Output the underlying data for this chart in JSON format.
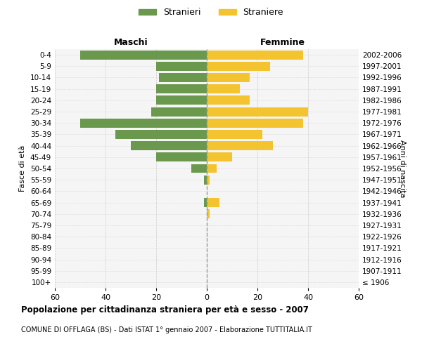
{
  "age_groups": [
    "100+",
    "95-99",
    "90-94",
    "85-89",
    "80-84",
    "75-79",
    "70-74",
    "65-69",
    "60-64",
    "55-59",
    "50-54",
    "45-49",
    "40-44",
    "35-39",
    "30-34",
    "25-29",
    "20-24",
    "15-19",
    "10-14",
    "5-9",
    "0-4"
  ],
  "birth_years": [
    "≤ 1906",
    "1907-1911",
    "1912-1916",
    "1917-1921",
    "1922-1926",
    "1927-1931",
    "1932-1936",
    "1937-1941",
    "1942-1946",
    "1947-1951",
    "1952-1956",
    "1957-1961",
    "1962-1966",
    "1967-1971",
    "1972-1976",
    "1977-1981",
    "1982-1986",
    "1987-1991",
    "1992-1996",
    "1997-2001",
    "2002-2006"
  ],
  "males": [
    0,
    0,
    0,
    0,
    0,
    0,
    0,
    1,
    0,
    1,
    6,
    20,
    30,
    36,
    50,
    22,
    20,
    20,
    19,
    20,
    50
  ],
  "females": [
    0,
    0,
    0,
    0,
    0,
    0,
    1,
    5,
    0,
    1,
    4,
    10,
    26,
    22,
    38,
    40,
    17,
    13,
    17,
    25,
    38
  ],
  "male_color": "#6a994e",
  "female_color": "#f4c430",
  "male_label": "Stranieri",
  "female_label": "Straniere",
  "xlim": 60,
  "title": "Popolazione per cittadinanza straniera per età e sesso - 2007",
  "subtitle": "COMUNE DI OFFLAGA (BS) - Dati ISTAT 1° gennaio 2007 - Elaborazione TUTTITALIA.IT",
  "xlabel_left": "Maschi",
  "xlabel_right": "Femmine",
  "ylabel_left": "Fasce di età",
  "ylabel_right": "Anni di nascita",
  "bg_color": "#f5f5f5",
  "grid_color": "#cccccc"
}
